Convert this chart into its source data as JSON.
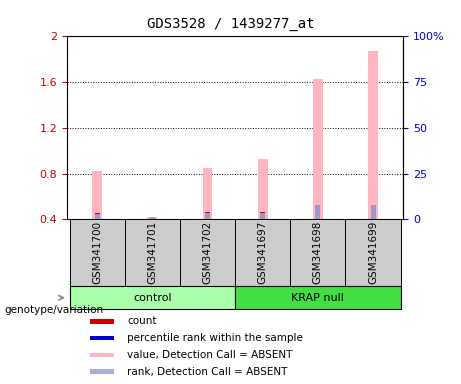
{
  "title": "GDS3528 / 1439277_at",
  "samples": [
    "GSM341700",
    "GSM341701",
    "GSM341702",
    "GSM341697",
    "GSM341698",
    "GSM341699"
  ],
  "ylim_left": [
    0.4,
    2.0
  ],
  "ylim_right": [
    0,
    100
  ],
  "yticks_left": [
    0.4,
    0.8,
    1.2,
    1.6,
    2.0
  ],
  "ytick_labels_left": [
    "0.4",
    "0.8",
    "1.2",
    "1.6",
    "2"
  ],
  "yticks_right": [
    0,
    25,
    50,
    75,
    100
  ],
  "ytick_labels_right": [
    "0",
    "25",
    "50",
    "75",
    "100%"
  ],
  "pink_bar_values": [
    0.82,
    0.42,
    0.845,
    0.925,
    1.625,
    1.875
  ],
  "blue_bar_values": [
    0.455,
    0.415,
    0.462,
    0.463,
    0.525,
    0.525
  ],
  "red_dot_values": [
    0.445,
    null,
    0.452,
    0.452,
    null,
    null
  ],
  "base_value": 0.4,
  "pink_bar_width": 0.18,
  "blue_bar_width": 0.09,
  "pink_color": "#FFB6C1",
  "blue_color": "#9999CC",
  "red_color": "#CC0000",
  "bg_color": "#FFFFFF",
  "left_tick_color": "#CC0000",
  "right_tick_color": "#0000CC",
  "dotted_lines": [
    0.8,
    1.2,
    1.6
  ],
  "control_color": "#AAFFAA",
  "krap_color": "#44DD44",
  "sample_box_color": "#CCCCCC",
  "legend_items": [
    {
      "label": "count",
      "color": "#CC0000"
    },
    {
      "label": "percentile rank within the sample",
      "color": "#0000CC"
    },
    {
      "label": "value, Detection Call = ABSENT",
      "color": "#FFB6C1"
    },
    {
      "label": "rank, Detection Call = ABSENT",
      "color": "#AAAADD"
    }
  ]
}
